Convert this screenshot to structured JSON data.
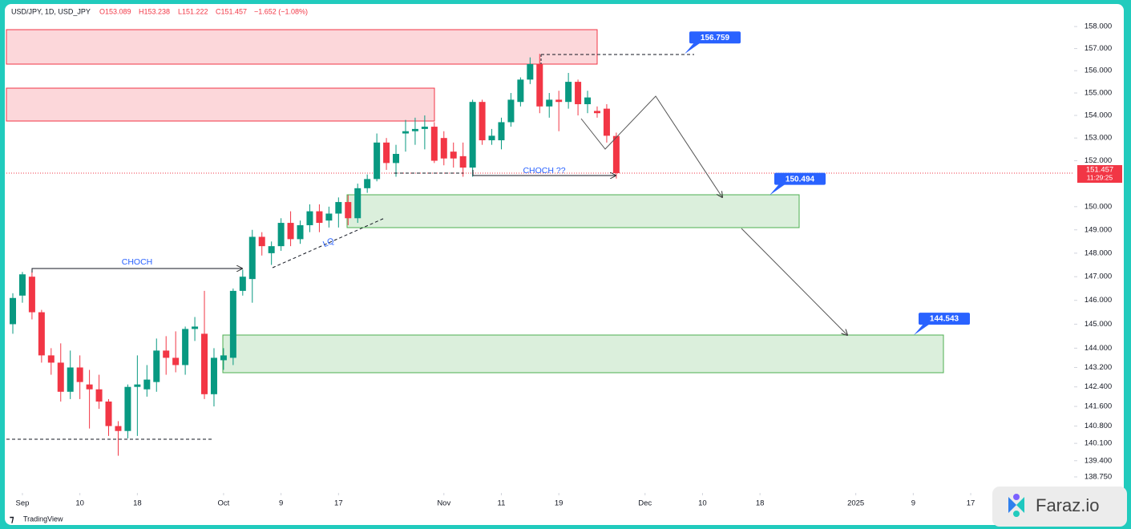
{
  "chart_data": {
    "type": "candlestick",
    "header": {
      "symbol": "USD/JPY, 1D, USD_JPY",
      "ohlc": [
        "O153.089",
        "H153.238",
        "L151.222",
        "C151.457"
      ],
      "change": "−1.652 (−1.08%)"
    },
    "log_scale": true,
    "grid": false,
    "up_color": "#089981",
    "down_color": "#f23645",
    "x": [
      -1,
      0,
      1,
      2,
      3,
      4,
      5,
      6,
      7,
      8,
      9,
      10,
      11,
      12,
      13,
      14,
      15,
      16,
      17,
      18,
      19,
      20,
      21,
      22,
      23,
      24,
      25,
      26,
      27,
      28,
      29,
      30,
      31,
      32,
      33,
      34,
      35,
      36,
      37,
      38,
      39,
      40,
      41,
      42,
      43,
      44,
      45,
      46,
      47,
      48,
      49,
      50,
      51,
      52,
      53,
      54,
      55,
      56,
      57,
      58,
      59,
      60,
      61,
      62
    ],
    "open": [
      145.0,
      146.2,
      147.0,
      145.5,
      143.7,
      143.4,
      142.2,
      143.2,
      142.5,
      142.3,
      141.8,
      140.8,
      140.6,
      142.4,
      142.3,
      142.6,
      143.9,
      143.6,
      143.3,
      144.8,
      144.6,
      142.1,
      143.5,
      143.6,
      146.4,
      146.9,
      148.7,
      148.0,
      148.3,
      149.3,
      148.6,
      149.2,
      149.8,
      149.4,
      149.7,
      150.2,
      149.5,
      150.8,
      151.2,
      152.8,
      151.9,
      153.2,
      153.3,
      153.4,
      153.5,
      153.0,
      152.4,
      152.2,
      151.7,
      154.6,
      152.9,
      152.9,
      153.7,
      154.6,
      155.6,
      156.3,
      154.4,
      154.7,
      154.6,
      155.5,
      154.5,
      154.2,
      154.3,
      153.089
    ],
    "high": [
      146.3,
      147.2,
      147.2,
      145.6,
      144.0,
      144.2,
      143.9,
      143.7,
      143.1,
      142.9,
      141.9,
      141.0,
      142.5,
      143.7,
      143.3,
      144.4,
      144.5,
      144.7,
      144.9,
      145.3,
      146.4,
      144.0,
      144.0,
      146.5,
      147.3,
      149.0,
      148.9,
      148.5,
      149.5,
      149.8,
      149.4,
      150.1,
      150.1,
      150.0,
      150.4,
      150.5,
      151.0,
      151.4,
      153.2,
      153.0,
      152.7,
      153.8,
      153.9,
      154.0,
      153.7,
      153.3,
      152.8,
      152.8,
      154.7,
      154.7,
      153.4,
      153.9,
      155.0,
      155.7,
      156.6,
      156.759,
      155.0,
      155.1,
      155.9,
      155.6,
      155.1,
      154.4,
      154.5,
      153.238
    ],
    "low": [
      144.6,
      145.9,
      145.2,
      143.4,
      142.9,
      141.8,
      141.9,
      141.9,
      140.7,
      141.5,
      140.4,
      139.6,
      140.3,
      140.4,
      142.0,
      142.2,
      142.9,
      143.0,
      142.9,
      144.3,
      141.9,
      141.6,
      143.1,
      143.3,
      146.2,
      145.9,
      147.9,
      147.5,
      148.1,
      148.3,
      148.4,
      148.9,
      148.9,
      149.1,
      149.1,
      149.2,
      149.3,
      150.6,
      151.1,
      151.6,
      151.3,
      152.4,
      152.7,
      152.5,
      151.9,
      151.8,
      151.7,
      151.3,
      151.3,
      152.7,
      152.7,
      152.5,
      153.5,
      154.4,
      155.4,
      154.1,
      153.9,
      153.3,
      154.3,
      154.0,
      154.1,
      153.9,
      152.8,
      151.222
    ],
    "close": [
      146.1,
      147.1,
      145.5,
      143.7,
      143.4,
      142.2,
      143.2,
      142.6,
      142.3,
      141.8,
      140.8,
      140.6,
      142.4,
      142.5,
      142.7,
      143.9,
      143.6,
      143.3,
      144.8,
      144.9,
      142.1,
      143.6,
      143.7,
      146.4,
      147.0,
      148.7,
      148.3,
      148.3,
      149.3,
      148.6,
      149.2,
      149.8,
      149.3,
      149.7,
      150.2,
      149.5,
      150.8,
      151.2,
      152.8,
      151.9,
      152.3,
      153.3,
      153.4,
      153.5,
      152.0,
      152.1,
      152.1,
      151.7,
      154.6,
      152.9,
      153.1,
      153.7,
      154.7,
      155.6,
      156.3,
      154.4,
      154.7,
      154.6,
      155.5,
      154.5,
      154.8,
      154.1,
      153.1,
      151.457
    ],
    "xlim": [
      -1.67,
      109.79
    ],
    "ylim": [
      138.11,
      158.92
    ],
    "xticks": [
      {
        "value": 0,
        "label": "Sep"
      },
      {
        "value": 6,
        "label": "10"
      },
      {
        "value": 12,
        "label": "18"
      },
      {
        "value": 21,
        "label": "Oct"
      },
      {
        "value": 27,
        "label": "9"
      },
      {
        "value": 33,
        "label": "17"
      },
      {
        "value": 44,
        "label": "Nov"
      },
      {
        "value": 50,
        "label": "11"
      },
      {
        "value": 56,
        "label": "19"
      },
      {
        "value": 65,
        "label": "Dec"
      },
      {
        "value": 71,
        "label": "10"
      },
      {
        "value": 77,
        "label": "18"
      },
      {
        "value": 87,
        "label": "2025"
      },
      {
        "value": 93,
        "label": "9"
      },
      {
        "value": 99,
        "label": "17"
      }
    ],
    "yticks": [
      {
        "value": 158,
        "label": "158.000"
      },
      {
        "value": 157,
        "label": "157.000"
      },
      {
        "value": 156,
        "label": "156.000"
      },
      {
        "value": 155,
        "label": "155.000"
      },
      {
        "value": 154,
        "label": "154.000"
      },
      {
        "value": 153,
        "label": "153.000"
      },
      {
        "value": 152,
        "label": "152.000"
      },
      {
        "value": 150,
        "label": "150.000"
      },
      {
        "value": 149,
        "label": "149.000"
      },
      {
        "value": 148,
        "label": "148.000"
      },
      {
        "value": 147,
        "label": "147.000"
      },
      {
        "value": 146,
        "label": "146.000"
      },
      {
        "value": 145,
        "label": "145.000"
      },
      {
        "value": 144,
        "label": "144.000"
      },
      {
        "value": 143.2,
        "label": "143.200"
      },
      {
        "value": 142.4,
        "label": "142.400"
      },
      {
        "value": 141.6,
        "label": "141.600"
      },
      {
        "value": 140.8,
        "label": "140.800"
      },
      {
        "value": 140.1,
        "label": "140.100"
      },
      {
        "value": 139.4,
        "label": "139.400"
      },
      {
        "value": 138.75,
        "label": "138.750"
      }
    ],
    "price_labels": [
      156.759,
      150.494,
      144.543
    ],
    "countdown": "11:29:25",
    "annotations": [
      "CHOCH",
      "CHOCH ??",
      "LQ"
    ],
    "branding": [
      "TradingView",
      "Faraz.io"
    ]
  }
}
